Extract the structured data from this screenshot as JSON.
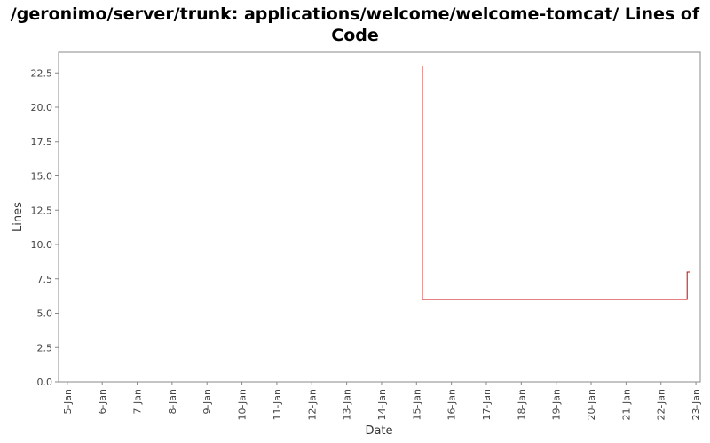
{
  "chart_data": {
    "type": "line",
    "title": "/geronimo/server/trunk: applications/welcome/welcome-tomcat/ Lines of Code",
    "xlabel": "Date",
    "ylabel": "Lines",
    "ylim": [
      0,
      24
    ],
    "y_ticks": [
      0.0,
      2.5,
      5.0,
      7.5,
      10.0,
      12.5,
      15.0,
      17.5,
      20.0,
      22.5
    ],
    "y_tick_labels": [
      "0.0",
      "2.5",
      "5.0",
      "7.5",
      "10.0",
      "12.5",
      "15.0",
      "17.5",
      "20.0",
      "22.5"
    ],
    "x_ticks": [
      "5-Jan",
      "6-Jan",
      "7-Jan",
      "8-Jan",
      "9-Jan",
      "10-Jan",
      "11-Jan",
      "12-Jan",
      "13-Jan",
      "14-Jan",
      "15-Jan",
      "16-Jan",
      "17-Jan",
      "18-Jan",
      "19-Jan",
      "20-Jan",
      "21-Jan",
      "22-Jan",
      "23-Jan"
    ],
    "xlim": [
      "4-Jan 18:00",
      "23-Jan 03:00"
    ],
    "grid": false,
    "legend": "none",
    "step": true,
    "series": [
      {
        "color": "#cc0000",
        "points": [
          {
            "x": "4-Jan 20:00",
            "y": 23
          },
          {
            "x": "15-Jan 04:00",
            "y": 23
          },
          {
            "x": "15-Jan 04:00",
            "y": 6
          },
          {
            "x": "22-Jan 18:00",
            "y": 6
          },
          {
            "x": "22-Jan 18:00",
            "y": 8
          },
          {
            "x": "22-Jan 20:00",
            "y": 8
          },
          {
            "x": "22-Jan 20:00",
            "y": 0
          }
        ]
      }
    ]
  }
}
